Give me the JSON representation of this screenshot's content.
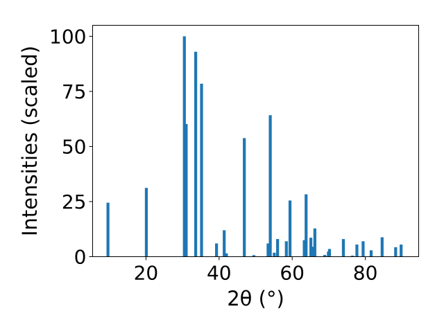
{
  "chart_data": {
    "type": "bar",
    "title": "",
    "xlabel": "2θ (°)",
    "ylabel": "Intensities (scaled)",
    "xlim": [
      5.4,
      94.6
    ],
    "ylim": [
      0,
      105
    ],
    "xticks": [
      20,
      40,
      60,
      80
    ],
    "yticks": [
      0,
      25,
      50,
      75,
      100
    ],
    "grid": false,
    "legend": "none",
    "bar_color": "#1f77b4",
    "bar_width": 0.8,
    "x": [
      9.6,
      20.1,
      30.5,
      31.0,
      33.6,
      35.2,
      39.3,
      41.4,
      42.0,
      46.9,
      49.5,
      53.4,
      54.0,
      55.1,
      56.0,
      58.4,
      59.4,
      63.3,
      63.8,
      65.1,
      65.8,
      66.2,
      68.9,
      69.9,
      70.2,
      74.0,
      76.5,
      77.7,
      79.4,
      81.6,
      84.6,
      88.3,
      89.8
    ],
    "values": [
      24.5,
      31.2,
      100.0,
      60.2,
      93.0,
      78.5,
      6.0,
      12.0,
      1.5,
      53.8,
      0.7,
      6.0,
      64.2,
      1.8,
      8.0,
      7.0,
      25.5,
      7.5,
      28.3,
      8.6,
      4.5,
      12.8,
      0.8,
      2.3,
      3.5,
      8.0,
      0.5,
      5.5,
      7.0,
      2.9,
      8.8,
      4.3,
      5.5
    ]
  }
}
